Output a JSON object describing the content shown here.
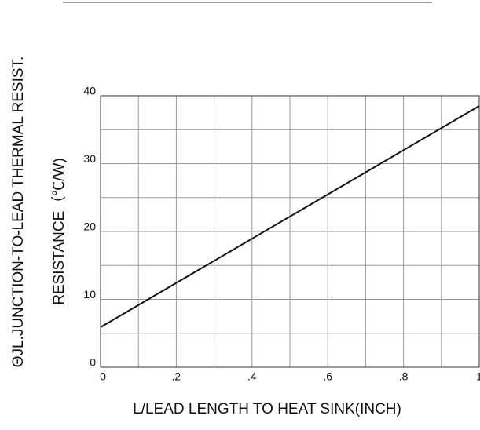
{
  "chart_data": {
    "type": "line",
    "ylabel_lines": [
      "ΘJL.JUNCTION-TO-LEAD THERMAL  RESIST.",
      "RESISTANCE（℃/W)"
    ],
    "xlabel": "L/LEAD LENGTH TO HEAT SINK(INCH)",
    "x": [
      0,
      1
    ],
    "series": [
      {
        "color": "#111111",
        "values": [
          5.9,
          38.5
        ]
      }
    ],
    "xlim": [
      0,
      1
    ],
    "xticks": [
      0,
      {
        "value": 0.2,
        "label": ".2"
      },
      {
        "value": 0.4,
        "label": ".4"
      },
      {
        "value": 0.6,
        "label": ".6"
      },
      {
        "value": 0.8,
        "label": ".8"
      },
      1
    ],
    "ylim": [
      0,
      40
    ],
    "yticks": [
      0,
      10,
      20,
      30,
      40
    ],
    "grid": true
  }
}
